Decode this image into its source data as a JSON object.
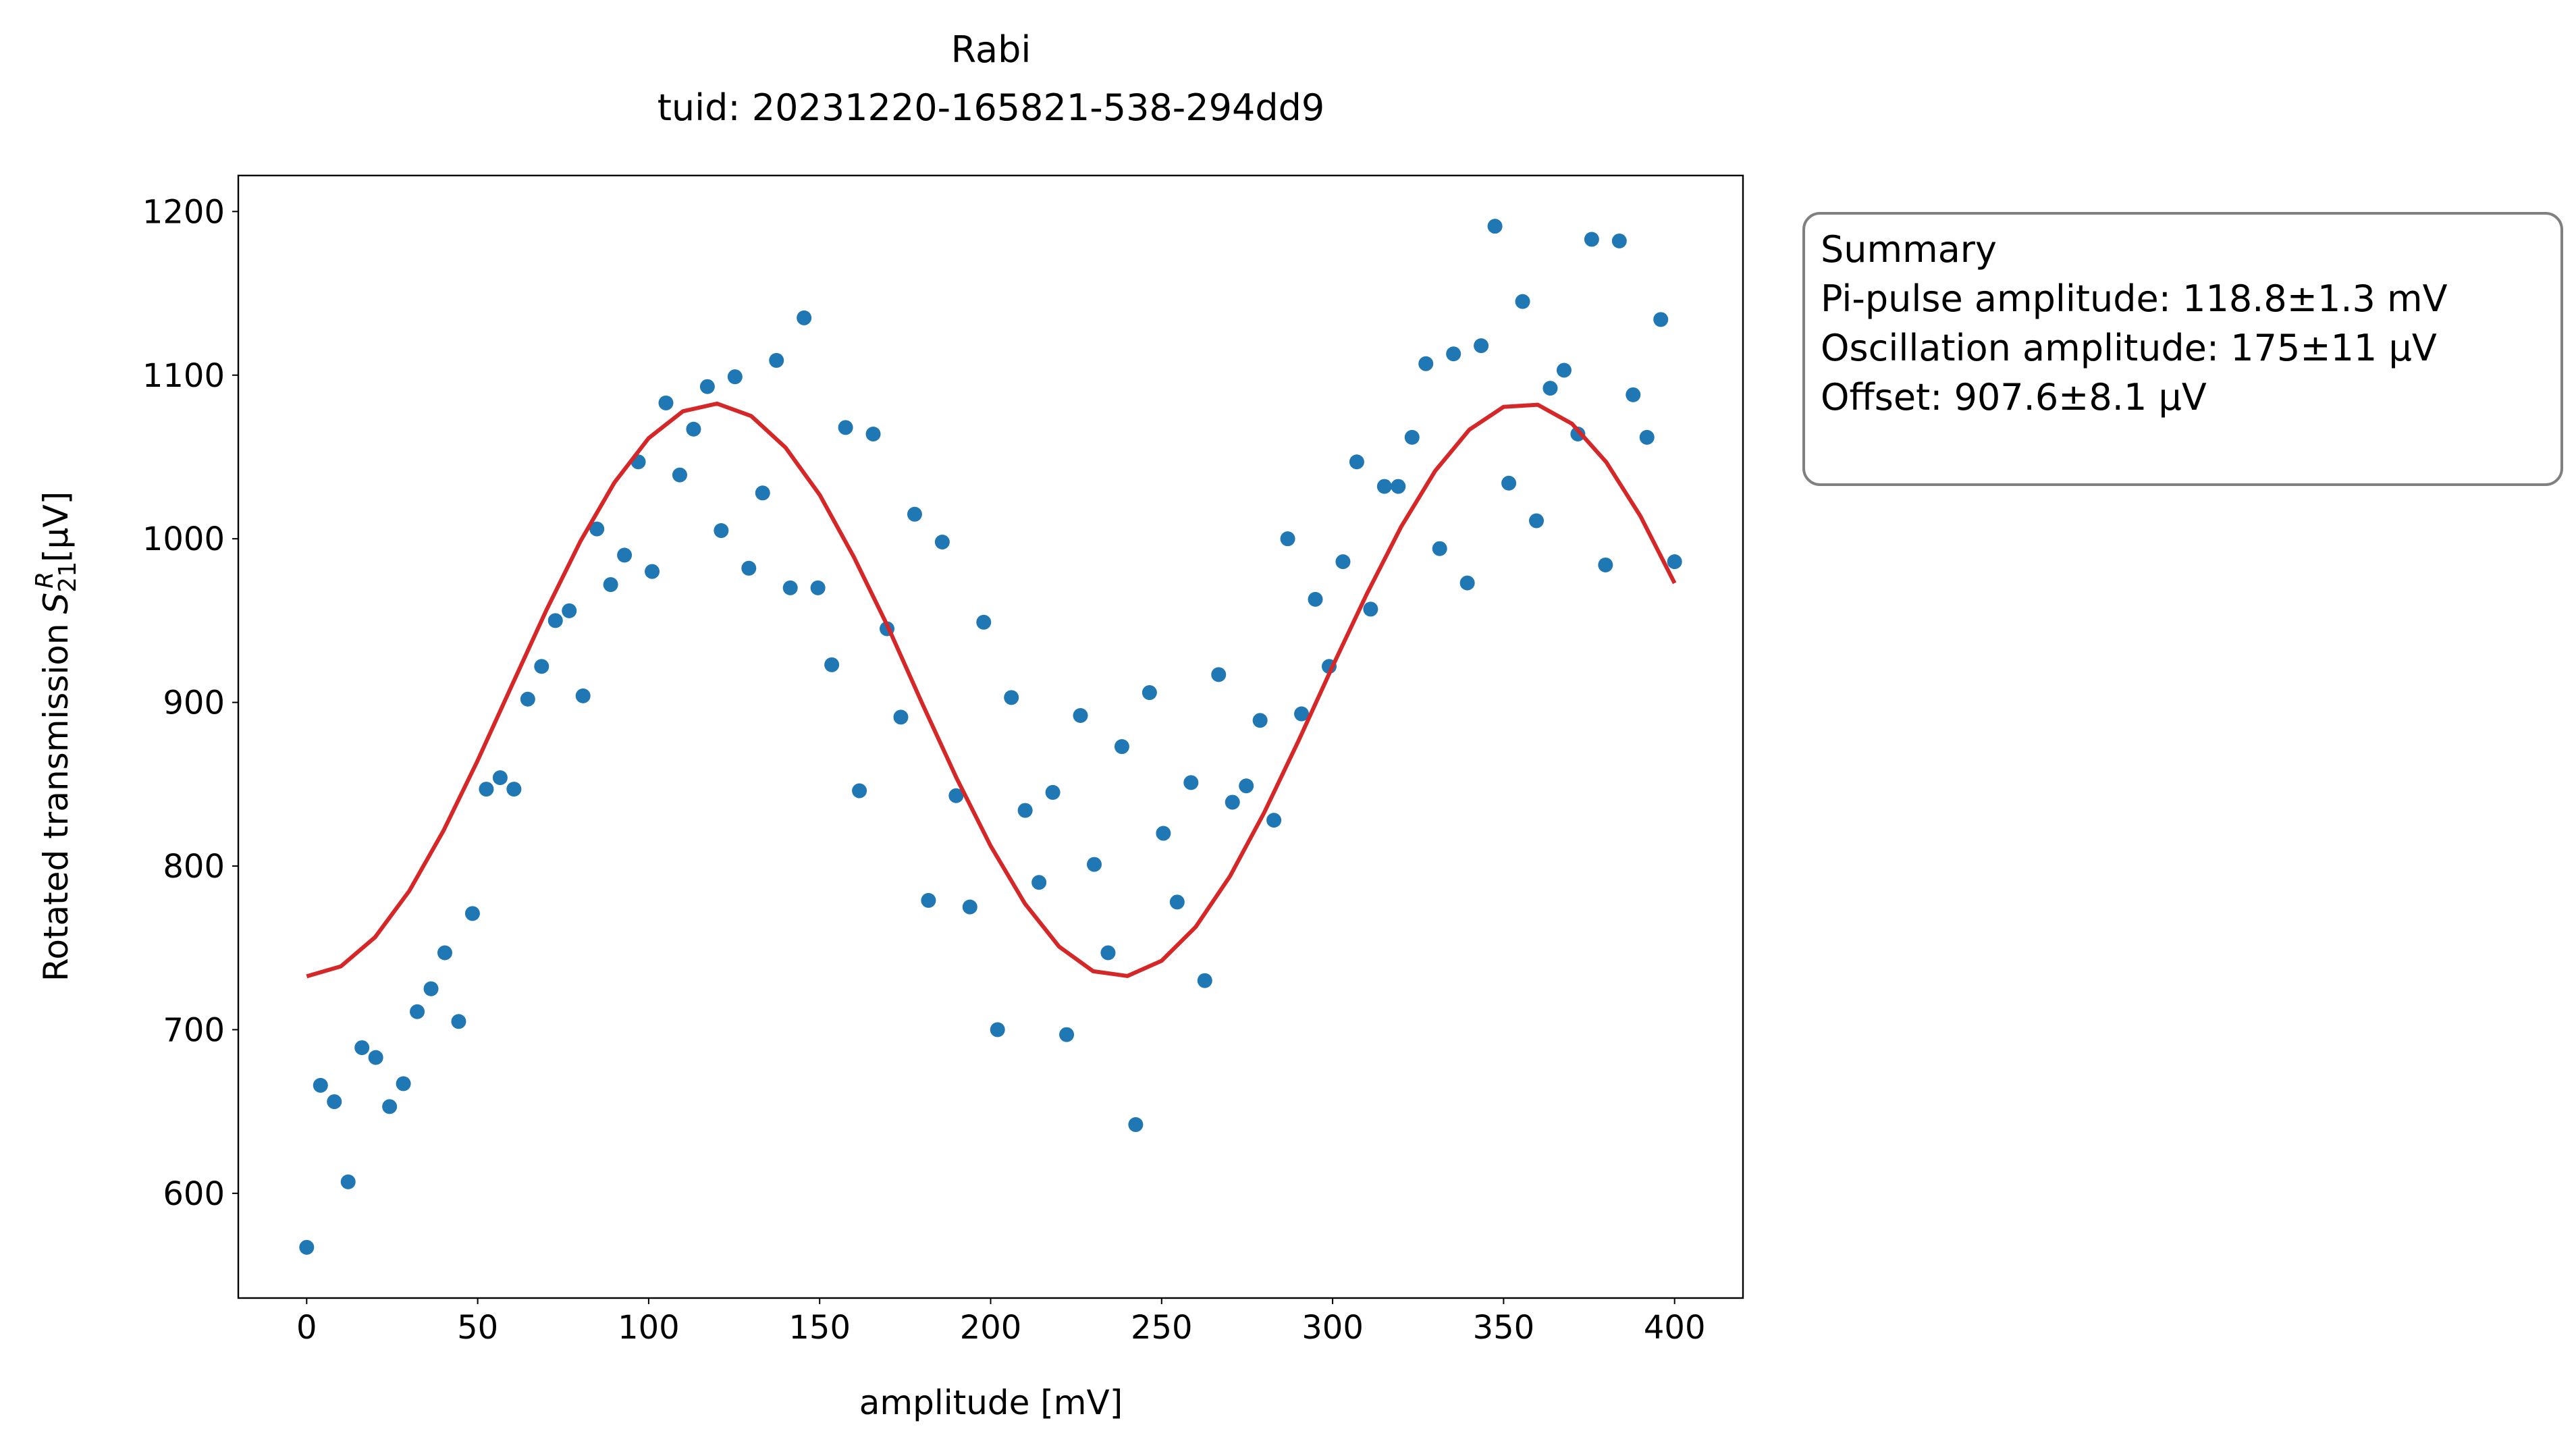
{
  "chart_data": {
    "type": "scatter",
    "title": "Rabi",
    "subtitle": "tuid: 20231220-165821-538-294dd9",
    "xlabel": "amplitude [mV]",
    "ylabel": {
      "text": "Rotated transmission",
      "symbol": "S",
      "subscript": "21",
      "superscript": "R",
      "unit": "[μV]"
    },
    "xlim": [
      -20,
      420
    ],
    "ylim": [
      536,
      1222
    ],
    "xticks": [
      0,
      50,
      100,
      150,
      200,
      250,
      300,
      350,
      400
    ],
    "yticks": [
      600,
      700,
      800,
      900,
      1000,
      1100,
      1200
    ],
    "grid": false,
    "series": [
      {
        "type": "scatter",
        "color": "#1f77b4",
        "x": [
          0,
          4.04,
          8.08,
          12.12,
          16.16,
          20.2,
          24.24,
          28.28,
          32.32,
          36.36,
          40.4,
          44.44,
          48.48,
          52.53,
          56.57,
          60.61,
          64.65,
          68.69,
          72.73,
          76.77,
          80.81,
          84.85,
          88.89,
          92.93,
          96.97,
          101.01,
          105.05,
          109.09,
          113.13,
          117.17,
          121.21,
          125.25,
          129.29,
          133.33,
          137.37,
          141.41,
          145.45,
          149.49,
          153.54,
          157.58,
          161.62,
          165.66,
          169.7,
          173.74,
          177.78,
          181.82,
          185.86,
          189.9,
          193.94,
          197.98,
          202.02,
          206.06,
          210.1,
          214.14,
          218.18,
          222.22,
          226.26,
          230.3,
          234.34,
          238.38,
          242.42,
          246.46,
          250.51,
          254.55,
          258.59,
          262.63,
          266.67,
          270.71,
          274.75,
          278.79,
          282.83,
          286.87,
          290.91,
          294.95,
          298.99,
          303.03,
          307.07,
          311.11,
          315.15,
          319.19,
          323.23,
          327.27,
          331.31,
          335.35,
          339.39,
          343.43,
          347.47,
          351.52,
          355.56,
          359.6,
          363.64,
          367.68,
          371.72,
          375.76,
          379.8,
          383.84,
          387.88,
          391.92,
          395.96,
          400
        ],
        "values": [
          567,
          666,
          656,
          607,
          689,
          683,
          653,
          667,
          711,
          725,
          747,
          705,
          771,
          847,
          854,
          847,
          902,
          922,
          950,
          956,
          904,
          1006,
          972,
          990,
          1047,
          980,
          1083,
          1039,
          1067,
          1093,
          1005,
          1099,
          982,
          1028,
          1109,
          970,
          1135,
          970,
          923,
          1068,
          846,
          1064,
          945,
          891,
          1015,
          779,
          998,
          843,
          775,
          949,
          700,
          903,
          834,
          790,
          845,
          697,
          892,
          801,
          747,
          873,
          642,
          906,
          820,
          778,
          851,
          730,
          917,
          839,
          849,
          889,
          828,
          1000,
          893,
          963,
          922,
          986,
          1047,
          957,
          1032,
          1032,
          1062,
          1107,
          994,
          1113,
          973,
          1118,
          1191,
          1034,
          1145,
          1011,
          1092,
          1103,
          1064,
          1183,
          984,
          1182,
          1088,
          1062,
          1134,
          986
        ]
      },
      {
        "type": "line",
        "color": "#d62728",
        "x": [
          0,
          10,
          20,
          30,
          40,
          50,
          60,
          70,
          80,
          90,
          100,
          110,
          120,
          130,
          140,
          150,
          160,
          170,
          180,
          190,
          200,
          210,
          220,
          230,
          240,
          250,
          260,
          270,
          280,
          290,
          300,
          310,
          320,
          330,
          340,
          350,
          360,
          370,
          380,
          390,
          400
        ],
        "values": [
          732.6,
          738.7,
          756.5,
          784.8,
          821.6,
          864.5,
          910.4,
          956.0,
          998.3,
          1034.4,
          1061.5,
          1077.9,
          1082.6,
          1075.0,
          1055.8,
          1026.9,
          988.9,
          946.1,
          899.3,
          853.9,
          812.3,
          777.1,
          750.8,
          735.7,
          732.8,
          742.1,
          762.9,
          793.8,
          832.7,
          876.4,
          922.1,
          966.3,
          1007.2,
          1041.5,
          1066.7,
          1080.6,
          1081.9,
          1070.3,
          1046.9,
          1013.9,
          972.9
        ]
      }
    ],
    "annotation": {
      "title": "Summary",
      "lines": [
        "Pi-pulse amplitude: 118.8±1.3 mV",
        "Oscillation amplitude: 175±11 μV",
        "Offset: 907.6±8.1 μV"
      ]
    }
  }
}
